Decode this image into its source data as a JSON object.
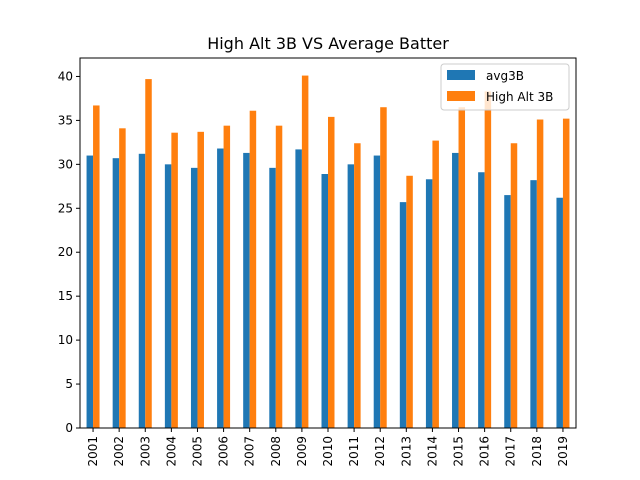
{
  "chart_data": {
    "type": "bar",
    "title": "High Alt 3B VS Average Batter",
    "xlabel": "",
    "ylabel": "",
    "categories": [
      "2001",
      "2002",
      "2003",
      "2004",
      "2005",
      "2006",
      "2007",
      "2008",
      "2009",
      "2010",
      "2011",
      "2012",
      "2013",
      "2014",
      "2015",
      "2016",
      "2017",
      "2018",
      "2019"
    ],
    "series": [
      {
        "name": "avg3B",
        "color": "#1f77b4",
        "values": [
          31.0,
          30.7,
          31.2,
          30.0,
          29.6,
          31.8,
          31.3,
          29.6,
          31.7,
          28.9,
          30.0,
          31.0,
          25.7,
          28.3,
          31.3,
          29.1,
          26.5,
          28.2,
          26.2
        ]
      },
      {
        "name": "High Alt 3B",
        "color": "#ff7f0e",
        "values": [
          36.7,
          34.1,
          39.7,
          33.6,
          33.7,
          34.4,
          36.1,
          34.4,
          40.1,
          35.4,
          32.4,
          36.5,
          28.7,
          32.7,
          36.5,
          38.3,
          32.4,
          35.1,
          35.2
        ]
      }
    ],
    "ylim": [
      0,
      42.1
    ],
    "yticks": [
      "0",
      "5",
      "10",
      "15",
      "20",
      "25",
      "30",
      "35",
      "40"
    ],
    "legend_position": "top-right",
    "grid": false
  }
}
